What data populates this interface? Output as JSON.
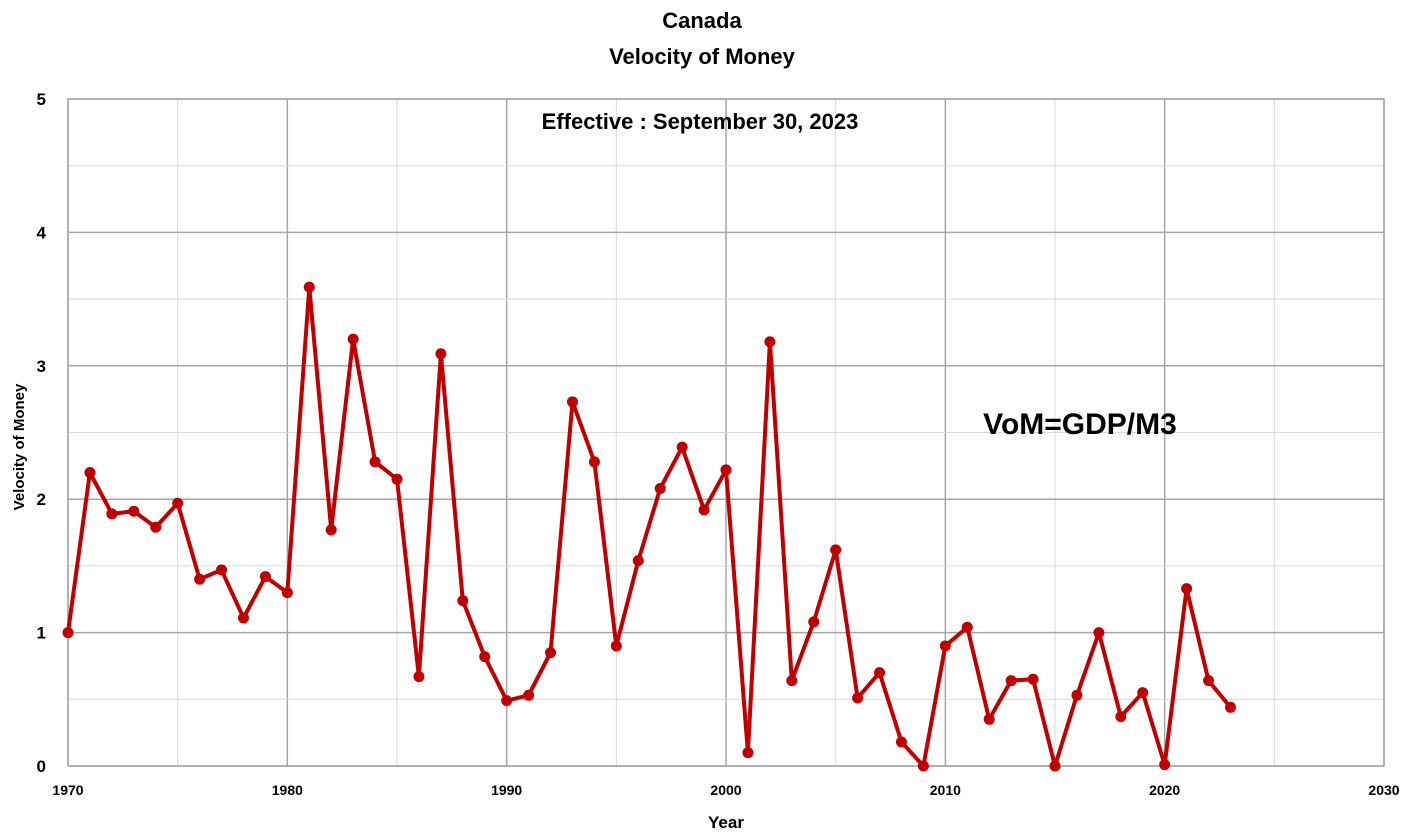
{
  "chart_data": {
    "type": "line",
    "title": "Canada",
    "subtitle": "Velocity of Money",
    "xlabel": "Year",
    "ylabel": "Velocity of Money",
    "xlim": [
      1970,
      2030
    ],
    "ylim": [
      0,
      5
    ],
    "x_ticks": [
      1970,
      1980,
      1990,
      2000,
      2010,
      2020,
      2030
    ],
    "y_ticks": [
      0,
      1,
      2,
      3,
      4,
      5
    ],
    "grid": true,
    "legend": "none",
    "annotations": [
      "Effective : September 30, 2023",
      "VoM=GDP/M3"
    ],
    "line_color": "#c00000",
    "series": [
      {
        "x": [
          1970,
          1971,
          1972,
          1973,
          1974,
          1975,
          1976,
          1977,
          1978,
          1979,
          1980,
          1981,
          1982,
          1983,
          1984,
          1985,
          1986,
          1987,
          1988,
          1989,
          1990,
          1991,
          1992,
          1993,
          1994,
          1995,
          1996,
          1997,
          1998,
          1999,
          2000,
          2001,
          2002,
          2003,
          2004,
          2005,
          2006,
          2007,
          2008,
          2009,
          2010,
          2011,
          2012,
          2013,
          2014,
          2015,
          2016,
          2017,
          2018,
          2019,
          2020,
          2021,
          2022,
          2023
        ],
        "y": [
          1.0,
          2.2,
          1.89,
          1.91,
          1.79,
          1.97,
          1.4,
          1.47,
          1.11,
          1.42,
          1.3,
          3.59,
          1.77,
          3.2,
          2.28,
          2.15,
          0.67,
          3.09,
          1.24,
          0.82,
          0.49,
          0.53,
          0.85,
          2.73,
          2.28,
          0.9,
          1.54,
          2.08,
          2.39,
          1.92,
          2.22,
          0.1,
          3.18,
          0.64,
          1.08,
          1.62,
          0.51,
          0.7,
          0.18,
          0.0,
          0.9,
          1.04,
          0.35,
          0.64,
          0.65,
          0.0,
          0.53,
          1.0,
          0.37,
          0.55,
          0.01,
          1.33,
          0.64,
          0.44
        ]
      }
    ]
  }
}
